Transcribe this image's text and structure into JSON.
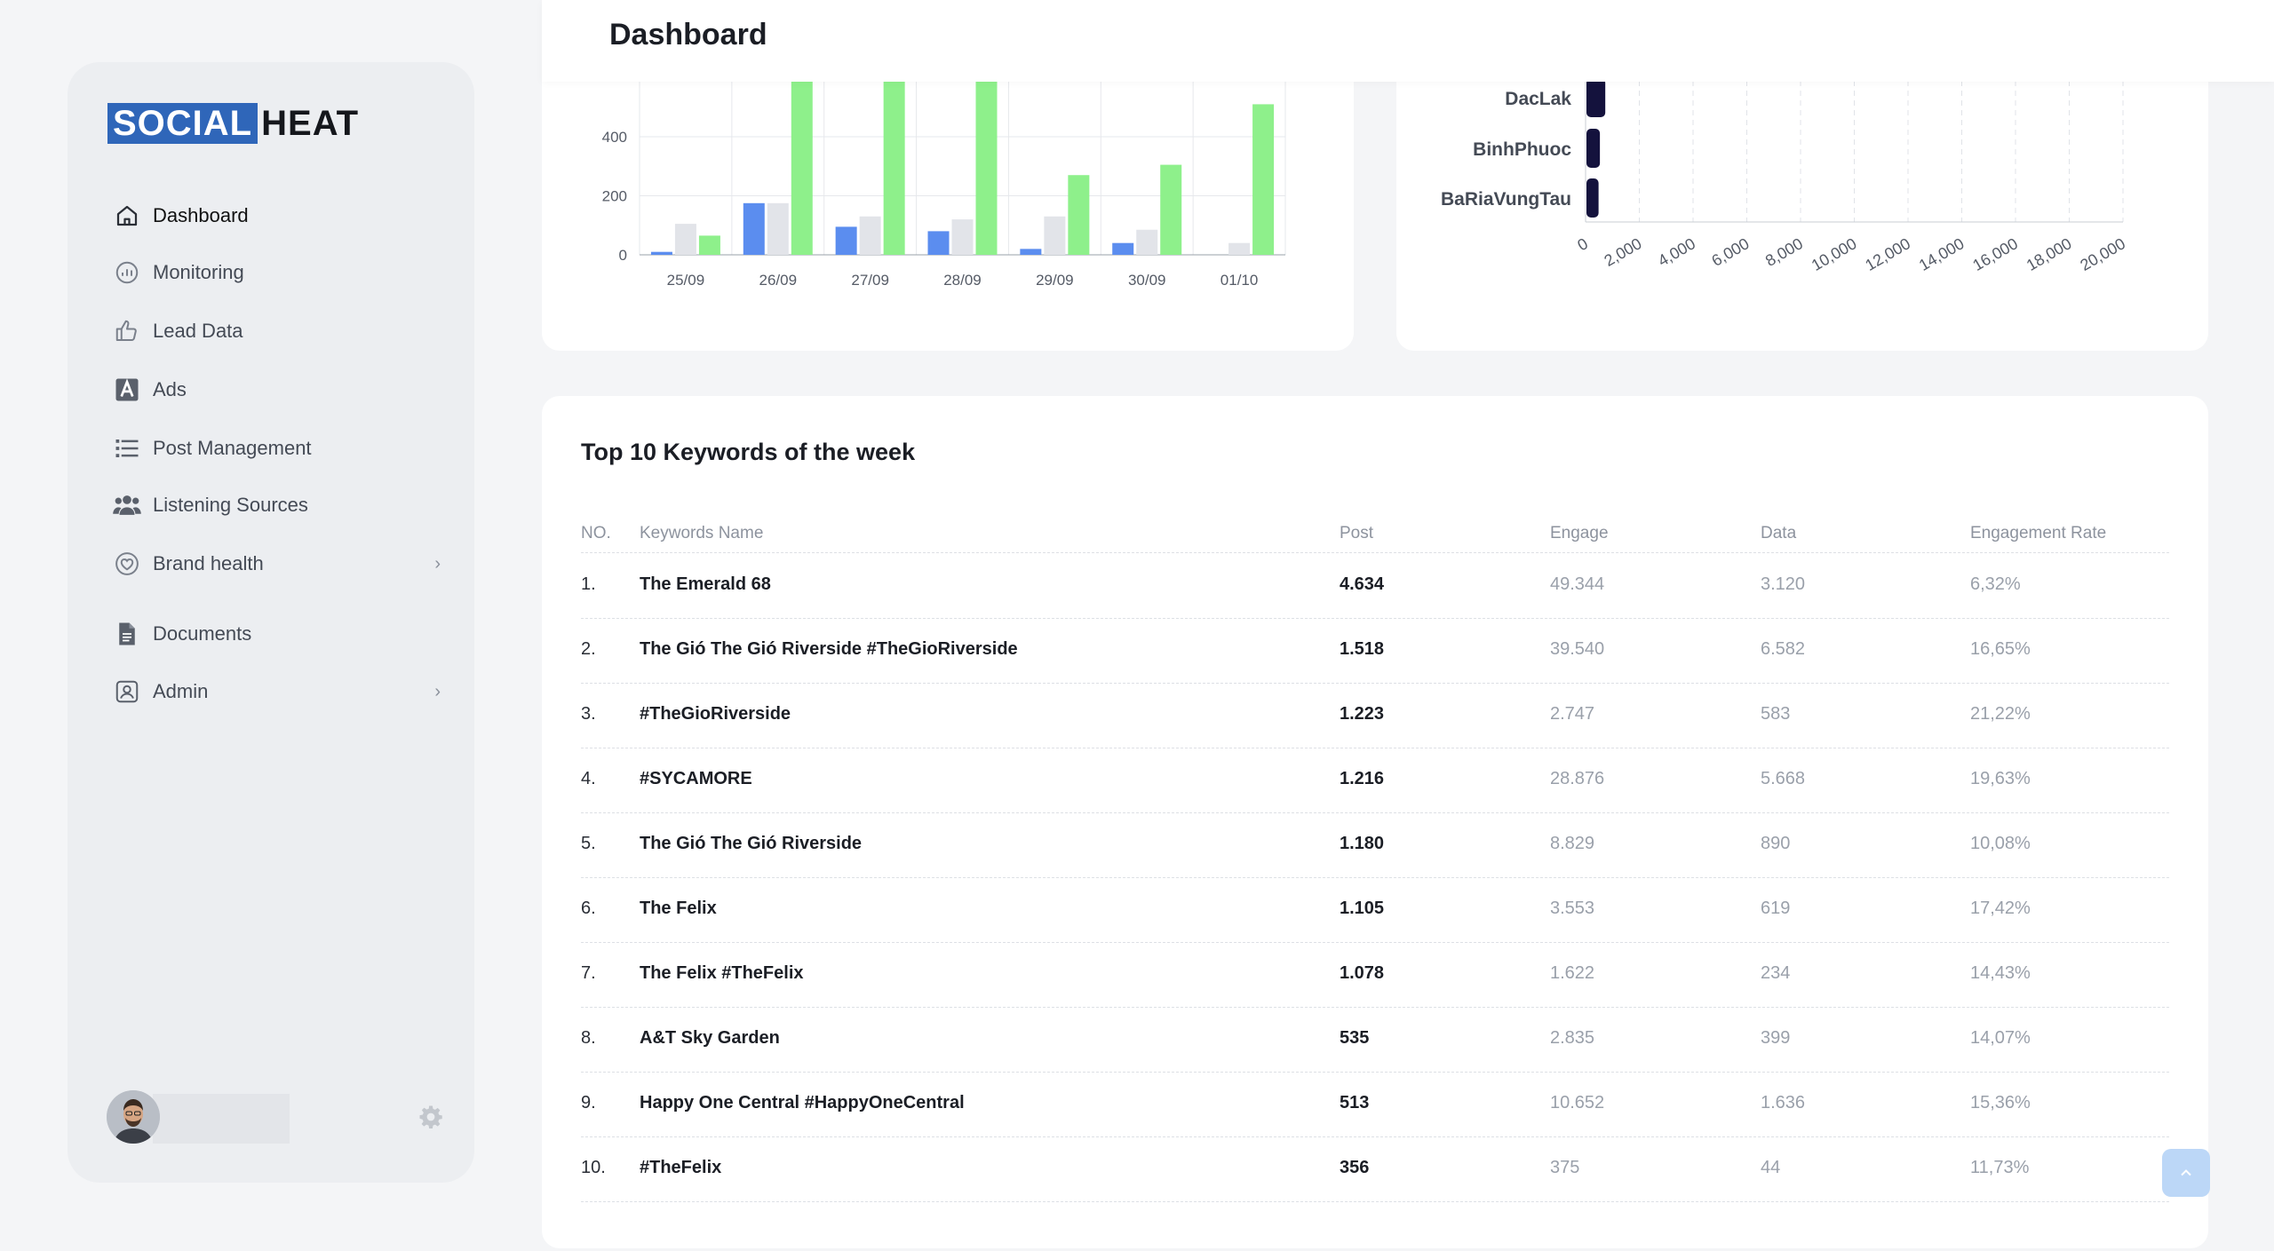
{
  "brand": {
    "part1": "SOCIAL",
    "part2": "HEAT"
  },
  "header": {
    "title": "Dashboard"
  },
  "sidebar": {
    "items": [
      {
        "label": "Dashboard",
        "icon": "home-icon",
        "active": true
      },
      {
        "label": "Monitoring",
        "icon": "monitoring-icon"
      },
      {
        "label": "Lead Data",
        "icon": "thumbs-up-icon"
      },
      {
        "label": "Ads",
        "icon": "ads-icon"
      },
      {
        "label": "Post Management",
        "icon": "list-icon"
      },
      {
        "label": "Listening Sources",
        "icon": "users-icon"
      },
      {
        "label": "Brand health",
        "icon": "heart-shield-icon",
        "has_children": true
      },
      {
        "label": "Documents",
        "icon": "document-icon"
      },
      {
        "label": "Admin",
        "icon": "admin-icon",
        "has_children": true
      }
    ]
  },
  "chart_data": [
    {
      "type": "bar",
      "categories": [
        "25/09",
        "26/09",
        "27/09",
        "28/09",
        "29/09",
        "30/09",
        "01/10"
      ],
      "series": [
        {
          "values": [
            10,
            175,
            95,
            80,
            20,
            40,
            0
          ],
          "color": "#5b8def"
        },
        {
          "values": [
            105,
            175,
            130,
            120,
            130,
            85,
            40
          ],
          "color": "#e2e4e9"
        },
        {
          "values": [
            65,
            650,
            650,
            650,
            270,
            305,
            510
          ],
          "color": "#8ef08b"
        }
      ],
      "yticks": [
        0,
        200,
        400
      ],
      "ylim": [
        0,
        600
      ],
      "grid": true
    },
    {
      "type": "bar",
      "orientation": "horizontal",
      "categories": [
        "DacLak",
        "BinhPhuoc",
        "BaRiaVungTau"
      ],
      "values": [
        700,
        500,
        450
      ],
      "xticks": [
        "0",
        "2,000",
        "4,000",
        "6,000",
        "8,000",
        "10,000",
        "12,000",
        "14,000",
        "16,000",
        "18,000",
        "20,000"
      ],
      "xlim": [
        0,
        20000
      ],
      "color": "#14123d",
      "grid": true
    }
  ],
  "table": {
    "title": "Top 10 Keywords of the week",
    "columns": {
      "no": "NO.",
      "name": "Keywords Name",
      "post": "Post",
      "engage": "Engage",
      "data": "Data",
      "rate": "Engagement Rate"
    },
    "rows": [
      {
        "no": "1.",
        "name": "The Emerald 68",
        "post": "4.634",
        "engage": "49.344",
        "data": "3.120",
        "rate": "6,32%"
      },
      {
        "no": "2.",
        "name": "The Gió The Gió Riverside #TheGioRiverside",
        "post": "1.518",
        "engage": "39.540",
        "data": "6.582",
        "rate": "16,65%"
      },
      {
        "no": "3.",
        "name": "#TheGioRiverside",
        "post": "1.223",
        "engage": "2.747",
        "data": "583",
        "rate": "21,22%"
      },
      {
        "no": "4.",
        "name": "#SYCAMORE",
        "post": "1.216",
        "engage": "28.876",
        "data": "5.668",
        "rate": "19,63%"
      },
      {
        "no": "5.",
        "name": "The Gió The Gió Riverside",
        "post": "1.180",
        "engage": "8.829",
        "data": "890",
        "rate": "10,08%"
      },
      {
        "no": "6.",
        "name": "The Felix",
        "post": "1.105",
        "engage": "3.553",
        "data": "619",
        "rate": "17,42%"
      },
      {
        "no": "7.",
        "name": "The Felix #TheFelix",
        "post": "1.078",
        "engage": "1.622",
        "data": "234",
        "rate": "14,43%"
      },
      {
        "no": "8.",
        "name": "A&T Sky Garden",
        "post": "535",
        "engage": "2.835",
        "data": "399",
        "rate": "14,07%"
      },
      {
        "no": "9.",
        "name": "Happy One Central #HappyOneCentral",
        "post": "513",
        "engage": "10.652",
        "data": "1.636",
        "rate": "15,36%"
      },
      {
        "no": "10.",
        "name": "#TheFelix",
        "post": "356",
        "engage": "375",
        "data": "44",
        "rate": "11,73%"
      }
    ]
  }
}
